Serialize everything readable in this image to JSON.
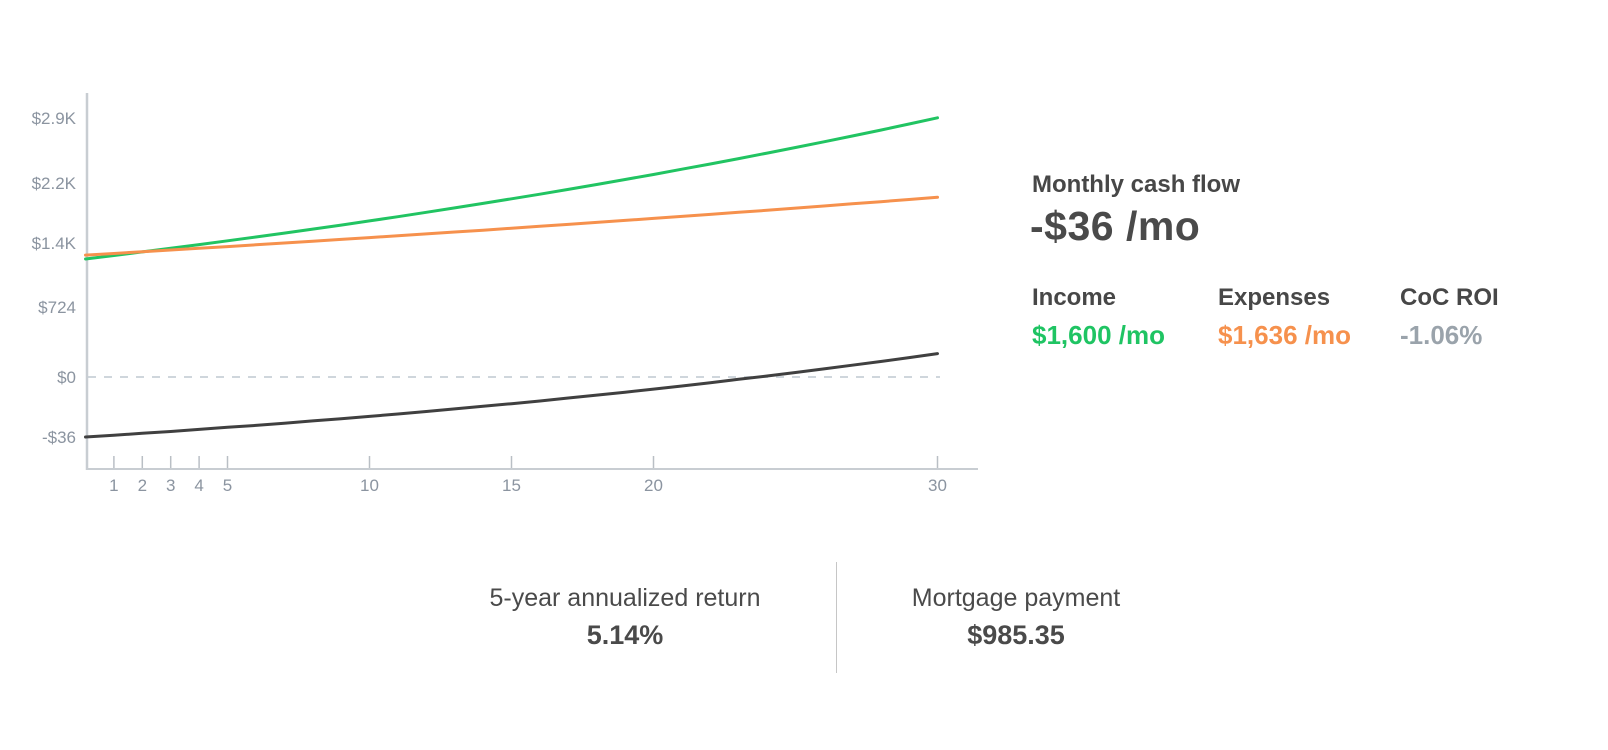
{
  "cashflow_panel": {
    "title": "Monthly cash flow",
    "value": "-$36 /mo",
    "stats": [
      {
        "label": "Income",
        "value": "$1,600 /mo",
        "color": "#1fc463"
      },
      {
        "label": "Expenses",
        "value": "$1,636 /mo",
        "color": "#f6914d"
      },
      {
        "label": "CoC ROI",
        "value": "-1.06%",
        "color": "#9aa3ab"
      }
    ]
  },
  "bottom_stats": [
    {
      "label": "5-year annualized return",
      "value": "5.14%"
    },
    {
      "label": "Mortgage payment",
      "value": "$985.35"
    }
  ],
  "chart_data": {
    "type": "line",
    "title": "",
    "xlabel": "",
    "ylabel": "",
    "x_years": [
      0,
      1,
      2,
      3,
      4,
      5,
      6,
      7,
      8,
      9,
      10,
      11,
      12,
      13,
      14,
      15,
      16,
      17,
      18,
      19,
      20,
      21,
      22,
      23,
      24,
      25,
      26,
      27,
      28,
      29,
      30
    ],
    "series": [
      {
        "name": "Income",
        "color": "#21c462",
        "values": [
          1600,
          1632,
          1665,
          1698,
          1732,
          1767,
          1802,
          1838,
          1875,
          1912,
          1950,
          1989,
          2029,
          2070,
          2111,
          2153,
          2196,
          2240,
          2285,
          2331,
          2377,
          2425,
          2473,
          2523,
          2573,
          2625,
          2677,
          2731,
          2785,
          2841,
          2898
        ]
      },
      {
        "name": "Expenses",
        "color": "#f6914d",
        "values": [
          1636,
          1651,
          1667,
          1683,
          1698,
          1714,
          1731,
          1747,
          1763,
          1780,
          1797,
          1814,
          1831,
          1848,
          1865,
          1883,
          1901,
          1918,
          1936,
          1955,
          1973,
          1992,
          2010,
          2029,
          2048,
          2068,
          2087,
          2107,
          2127,
          2147,
          2167
        ]
      },
      {
        "name": "Cash flow",
        "color": "#404040",
        "values": [
          -36,
          -19,
          -2,
          15,
          34,
          53,
          71,
          91,
          112,
          132,
          153,
          175,
          198,
          222,
          246,
          270,
          295,
          322,
          349,
          376,
          404,
          433,
          463,
          494,
          525,
          557,
          590,
          624,
          658,
          694,
          731
        ]
      }
    ],
    "x_tick_labels": [
      "1",
      "2",
      "3",
      "4",
      "5",
      "10",
      "15",
      "20",
      "30"
    ],
    "y_tick_labels": [
      "$2.9K",
      "$2.2K",
      "$1.4K",
      "$724",
      "$0",
      "-$36"
    ],
    "zero_line_label": "$0",
    "zero_line_style": "dashed",
    "xlim": [
      0,
      30
    ],
    "ylim": [
      -36,
      2896
    ],
    "grid": false,
    "legend": "none"
  }
}
